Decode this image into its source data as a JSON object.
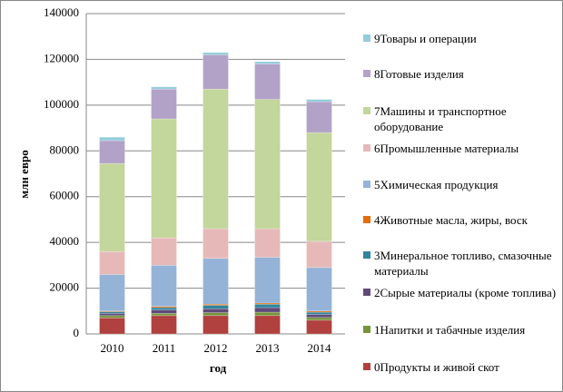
{
  "chart_data": {
    "type": "stacked_bar",
    "x_label": "год",
    "y_label": "млн евро",
    "categories": [
      "2010",
      "2011",
      "2012",
      "2013",
      "2014"
    ],
    "ylim": [
      0,
      140000
    ],
    "yticks": [
      0,
      20000,
      40000,
      60000,
      80000,
      100000,
      120000,
      140000
    ],
    "grid": true,
    "series": [
      {
        "name": "0Продукты и живой скот",
        "color": "#b0413e",
        "values": [
          7000,
          8000,
          8000,
          8000,
          6000
        ]
      },
      {
        "name": "1Напитки и табачные изделия",
        "color": "#77933c",
        "values": [
          1000,
          1000,
          1300,
          1500,
          1200
        ]
      },
      {
        "name": "2Сырые материалы (кроме топлива)",
        "color": "#604a7b",
        "values": [
          1000,
          1500,
          1700,
          2000,
          1300
        ]
      },
      {
        "name": "3Минеральное топливо, смазочные материалы",
        "color": "#31859c",
        "values": [
          700,
          1000,
          1500,
          1500,
          1000
        ]
      },
      {
        "name": "4Животные масла, жиры, воск",
        "color": "#e46c0a",
        "values": [
          300,
          500,
          500,
          500,
          500
        ]
      },
      {
        "name": "5Химическая продукция",
        "color": "#95b3d7",
        "values": [
          16000,
          18000,
          20000,
          20000,
          19000
        ]
      },
      {
        "name": "6Промышленные материалы",
        "color": "#e6b9b8",
        "values": [
          10000,
          12000,
          13000,
          12500,
          11500
        ]
      },
      {
        "name": "7Машины и транспортное оборудование",
        "color": "#c3d69b",
        "values": [
          38500,
          52000,
          61000,
          56500,
          47500
        ]
      },
      {
        "name": "8Готовые изделия",
        "color": "#b3a2c7",
        "values": [
          10000,
          13000,
          15000,
          15500,
          13500
        ]
      },
      {
        "name": "9Товары и операции",
        "color": "#93cddd",
        "values": [
          1500,
          1000,
          1000,
          1000,
          1000
        ]
      }
    ]
  }
}
